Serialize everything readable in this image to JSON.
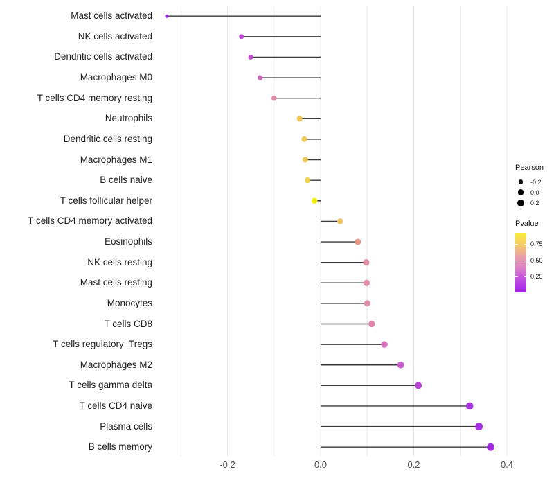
{
  "chart_data": {
    "type": "scatter",
    "style": "lollipop",
    "orientation": "horizontal",
    "title": "",
    "xlabel": "",
    "ylabel": "",
    "xlim": [
      -0.35,
      0.42
    ],
    "grid": "vertical-only",
    "x_gridlines": [
      -0.3,
      -0.2,
      -0.1,
      0.0,
      0.1,
      0.2,
      0.3,
      0.4
    ],
    "x_ticks": [
      {
        "value": -0.2,
        "label": "-0.2"
      },
      {
        "value": 0.0,
        "label": "0.0"
      },
      {
        "value": 0.2,
        "label": "0.2"
      },
      {
        "value": 0.4,
        "label": "0.4"
      }
    ],
    "size_encoding": "Pearson",
    "color_encoding": "Pvalue",
    "rows": [
      {
        "label": "Mast cells activated",
        "pearson": -0.33,
        "pvalue": 0.12,
        "color": "#8B22CE"
      },
      {
        "label": "NK cells activated",
        "pearson": -0.17,
        "pvalue": 0.2,
        "color": "#BC3FD4"
      },
      {
        "label": "Dendritic cells activated",
        "pearson": -0.15,
        "pvalue": 0.24,
        "color": "#C24ACB"
      },
      {
        "label": "Macrophages M0",
        "pearson": -0.13,
        "pvalue": 0.32,
        "color": "#C960B4"
      },
      {
        "label": "T cells CD4 memory resting",
        "pearson": -0.1,
        "pvalue": 0.45,
        "color": "#DE86A6"
      },
      {
        "label": "Neutrophils",
        "pearson": -0.045,
        "pvalue": 0.7,
        "color": "#EFC351"
      },
      {
        "label": "Dendritic cells resting",
        "pearson": -0.035,
        "pvalue": 0.71,
        "color": "#F0C653"
      },
      {
        "label": "Macrophages M1",
        "pearson": -0.033,
        "pvalue": 0.73,
        "color": "#F0CA4E"
      },
      {
        "label": "B cells naive",
        "pearson": -0.028,
        "pvalue": 0.75,
        "color": "#F1D24A"
      },
      {
        "label": "T cells follicular helper",
        "pearson": -0.013,
        "pvalue": 0.9,
        "color": "#F2EF00"
      },
      {
        "label": "T cells CD4 memory activated",
        "pearson": 0.042,
        "pvalue": 0.7,
        "color": "#EFC25B"
      },
      {
        "label": "Eosinophils",
        "pearson": 0.08,
        "pvalue": 0.55,
        "color": "#E69380"
      },
      {
        "label": "NK cells resting",
        "pearson": 0.098,
        "pvalue": 0.47,
        "color": "#E18AA1"
      },
      {
        "label": "Mast cells resting",
        "pearson": 0.099,
        "pvalue": 0.47,
        "color": "#E1889F"
      },
      {
        "label": "Monocytes",
        "pearson": 0.1,
        "pvalue": 0.47,
        "color": "#E088A1"
      },
      {
        "label": "T cells CD8",
        "pearson": 0.11,
        "pvalue": 0.44,
        "color": "#DF81A9"
      },
      {
        "label": "T cells regulatory  Tregs",
        "pearson": 0.137,
        "pvalue": 0.35,
        "color": "#D76CBB"
      },
      {
        "label": "Macrophages M2",
        "pearson": 0.172,
        "pvalue": 0.24,
        "color": "#C553CE"
      },
      {
        "label": "T cells gamma delta",
        "pearson": 0.21,
        "pvalue": 0.16,
        "color": "#B83AD9"
      },
      {
        "label": "T cells CD4 naive",
        "pearson": 0.32,
        "pvalue": 0.07,
        "color": "#A72CDF"
      },
      {
        "label": "Plasma cells",
        "pearson": 0.34,
        "pvalue": 0.05,
        "color": "#A326E0"
      },
      {
        "label": "B cells memory",
        "pearson": 0.365,
        "pvalue": 0.04,
        "color": "#9D20DD"
      }
    ],
    "legend_pearson": {
      "title": "Pearson",
      "items": [
        {
          "label": "-0.2",
          "value": -0.2
        },
        {
          "label": "0.0",
          "value": 0.0
        },
        {
          "label": "0.2",
          "value": 0.2
        }
      ]
    },
    "legend_pvalue": {
      "title": "Pvalue",
      "ticks": [
        {
          "label": "0.75",
          "value": 0.75
        },
        {
          "label": "0.50",
          "value": 0.5
        },
        {
          "label": "0.25",
          "value": 0.25
        }
      ],
      "gradient_top_color": "#FAEE38",
      "gradient_bottom_color": "#A520F0"
    },
    "colors": {
      "gridline": "#e8e8e8",
      "stem": "#3a3a3a",
      "axis_text": "#4d4d4d",
      "label_text": "#1f1f1f",
      "legend_dot": "#000000"
    }
  }
}
